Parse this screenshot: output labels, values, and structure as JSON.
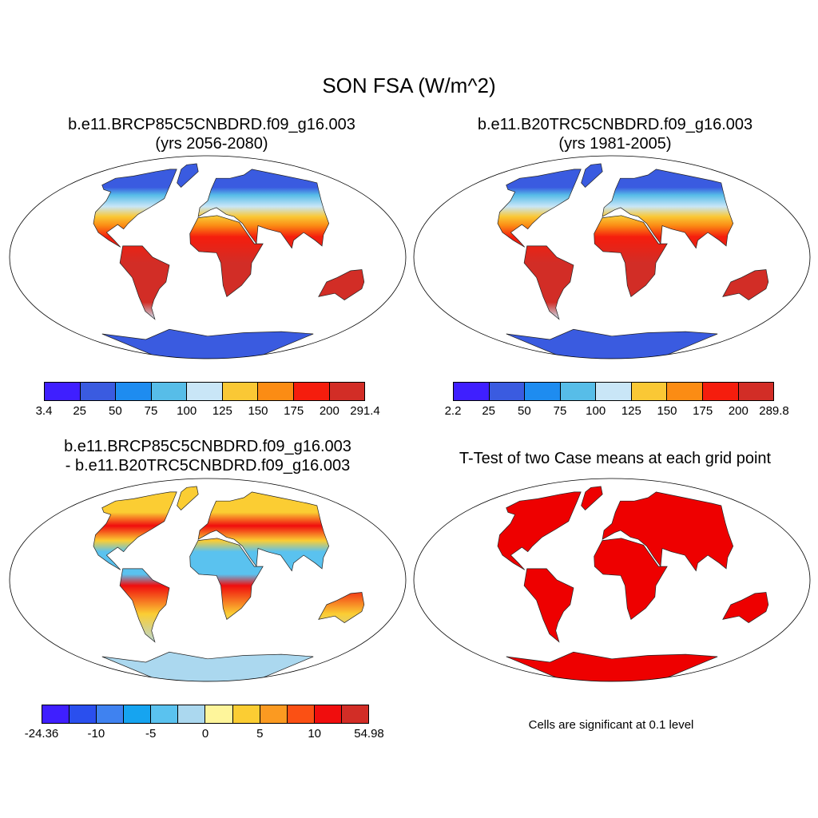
{
  "figure": {
    "title": "SON FSA (W/m^2)"
  },
  "panels": [
    {
      "title_line1": "b.e11.BRCP85C5CNBDRD.f09_g16.003",
      "title_line2": "(yrs 2056-2080)"
    },
    {
      "title_line1": "b.e11.B20TRC5CNBDRD.f09_g16.003",
      "title_line2": "(yrs 1981-2005)"
    },
    {
      "title_line1": "b.e11.BRCP85C5CNBDRD.f09_g16.003",
      "title_line2": "- b.e11.B20TRC5CNBDRD.f09_g16.003"
    },
    {
      "title_line1": "T-Test of two Case means at each grid point"
    }
  ],
  "colorbars": {
    "a": {
      "colors": [
        "#3f1fff",
        "#3a5be0",
        "#1e8cf0",
        "#57bde8",
        "#c9e6f7",
        "#fac835",
        "#fb8c14",
        "#f51d0d",
        "#d22d26"
      ],
      "labels": [
        "3.4",
        "25",
        "50",
        "75",
        "100",
        "125",
        "150",
        "175",
        "200",
        "291.4"
      ]
    },
    "b": {
      "colors": [
        "#3f1fff",
        "#3a5be0",
        "#1e8cf0",
        "#57bde8",
        "#c9e6f7",
        "#fac835",
        "#fb8c14",
        "#f51d0d",
        "#d22d26"
      ],
      "labels": [
        "2.2",
        "25",
        "50",
        "75",
        "100",
        "125",
        "150",
        "175",
        "200",
        "289.8"
      ]
    },
    "c": {
      "colors": [
        "#3f1fff",
        "#2a4fee",
        "#3f82f0",
        "#16a4f0",
        "#5ac2ef",
        "#abd8ef",
        "#fef59b",
        "#fbcd33",
        "#fb9a21",
        "#fb5014",
        "#f00d0d",
        "#d22d26"
      ],
      "labels": [
        "-24.36",
        "-10",
        "-5",
        "0",
        "5",
        "10",
        "54.98"
      ]
    }
  },
  "map_colors": {
    "ocean": "#ffffff",
    "a": {
      "polar": "#3a5be0",
      "high": "#57bde8",
      "mid": "#c9e6f7",
      "warm": "#fac835",
      "hot": "#fb8c14",
      "tropic": "#d22d26",
      "desert": "#f51d0d"
    },
    "c": {
      "base": "#fbcd33",
      "neg": "#5ac2ef",
      "pos": "#f00d0d",
      "ant": "#abd8ef"
    },
    "sig": "#ee0000"
  },
  "significance_note": "Cells are significant at 0.1 level"
}
